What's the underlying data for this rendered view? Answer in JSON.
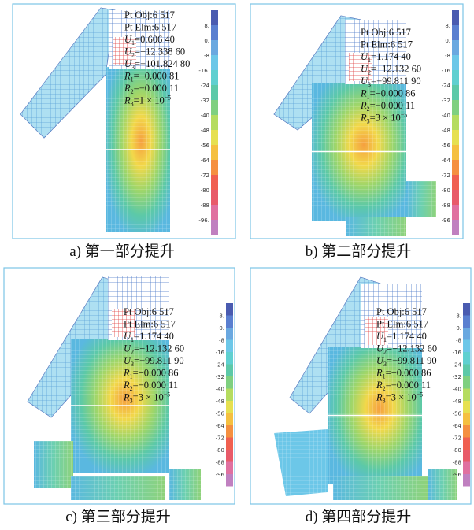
{
  "panels": [
    {
      "caption": "a) 第一部分提升",
      "info": [
        {
          "text": "Pt Obj:6 517"
        },
        {
          "text": "Pt Elm:6 517"
        },
        {
          "symbol": "U",
          "sub": "1",
          "text": "=0.606 40"
        },
        {
          "symbol": "U",
          "sub": "2",
          "text": "=−12.338 60"
        },
        {
          "symbol": "U",
          "sub": "3",
          "text": "=−101.824 80"
        },
        {
          "symbol": "R",
          "sub": "1",
          "text": "=−0.000 81"
        },
        {
          "symbol": "R",
          "sub": "2",
          "text": "=−0.000 11"
        },
        {
          "symbol": "R",
          "sub": "3",
          "text": "=1 × 10",
          "sup": "−5"
        }
      ],
      "legend": [
        "8.",
        "0.",
        "-8",
        "-16.",
        "-24",
        "-32",
        "-40",
        "-48",
        "-56",
        "-64",
        "-72",
        "-80",
        "-88",
        "-96."
      ]
    },
    {
      "caption": "b) 第二部分提升",
      "info": [
        {
          "text": "Pt Obj:6 517"
        },
        {
          "text": "Pt Elm:6 517"
        },
        {
          "symbol": "U",
          "sub": "1",
          "text": "=1.174 40"
        },
        {
          "symbol": "U",
          "sub": "2",
          "text": "=−12.132 60"
        },
        {
          "symbol": "U",
          "sub": "3",
          "text": "=−99.811 90"
        },
        {
          "symbol": "R",
          "sub": "1",
          "text": "=−0.000 86"
        },
        {
          "symbol": "R",
          "sub": "2",
          "text": "=−0.000 11"
        },
        {
          "symbol": "R",
          "sub": "3",
          "text": "=3 × 10",
          "sup": "−5"
        }
      ],
      "legend": [
        "8.",
        "0.",
        "-8",
        "-16",
        "-24",
        "-32",
        "-40",
        "-48",
        "-56",
        "-64",
        "-72",
        "-80",
        "-88",
        "-96"
      ]
    },
    {
      "caption": "c) 第三部分提升",
      "info": [
        {
          "text": "Pt Obj:6 517"
        },
        {
          "text": "Pt Elm:6 517"
        },
        {
          "symbol": "U",
          "sub": "1",
          "text": "=1.174 40"
        },
        {
          "symbol": "U",
          "sub": "2",
          "text": "=−12.132 60"
        },
        {
          "symbol": "U",
          "sub": "3",
          "text": "=−99.811 90"
        },
        {
          "symbol": "R",
          "sub": "1",
          "text": "=−0.000 86"
        },
        {
          "symbol": "R",
          "sub": "2",
          "text": "=−0.000 11"
        },
        {
          "symbol": "R",
          "sub": "3",
          "text": "=3 × 10",
          "sup": "−5"
        }
      ],
      "legend": [
        "8.",
        "0.",
        "-8",
        "-16",
        "-24",
        "-32",
        "-40",
        "-48",
        "-56",
        "-64",
        "-72",
        "-80",
        "-88",
        "-96"
      ]
    },
    {
      "caption": "d) 第四部分提升",
      "info": [
        {
          "text": "Pt Obj:6 517"
        },
        {
          "text": "Pt Elm:6 517"
        },
        {
          "symbol": "U",
          "sub": "1",
          "text": "=1.174 40"
        },
        {
          "symbol": "U",
          "sub": "2",
          "text": "=−12.132 60"
        },
        {
          "symbol": "U",
          "sub": "3",
          "text": "=−99.811 90"
        },
        {
          "symbol": "R",
          "sub": "1",
          "text": "=−0.000 86"
        },
        {
          "symbol": "R",
          "sub": "2",
          "text": "=−0.000 11"
        },
        {
          "symbol": "R",
          "sub": "3",
          "text": "=3 × 10",
          "sup": "−5"
        }
      ],
      "legend": [
        "8.",
        "0.",
        "-8",
        "-16",
        "-24",
        "-32",
        "-40",
        "-48",
        "-56",
        "-64",
        "-72",
        "-80",
        "-88",
        "-96"
      ]
    }
  ]
}
